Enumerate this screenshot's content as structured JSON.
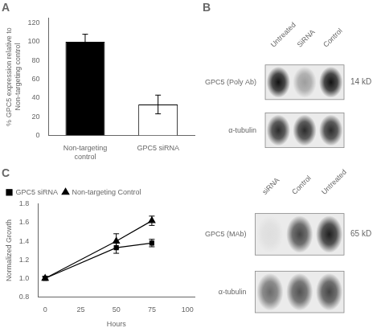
{
  "chart_data": [
    {
      "type": "bar",
      "title": "A",
      "categories": [
        "Non-targeting\ncontrol",
        "GPC5 siRNA"
      ],
      "values": [
        100,
        33
      ],
      "errors": [
        8,
        10
      ],
      "colors": [
        "black",
        "white"
      ],
      "ylabel": "% GPC5 expression relative to\nNon-targeting control",
      "ylim": [
        0,
        125
      ],
      "yticks": [
        0,
        20,
        40,
        60,
        80,
        100,
        120
      ],
      "grid": false
    },
    {
      "type": "line",
      "title": "C",
      "x": [
        0,
        50,
        75
      ],
      "series": [
        {
          "name": "GPC5 siRNA",
          "color": "black",
          "marker": "square",
          "line_style": "solid",
          "values": [
            1.0,
            1.33,
            1.38
          ],
          "errors": [
            0.02,
            0.06,
            0.04
          ]
        },
        {
          "name": "Non-targeting Control",
          "color": "black",
          "marker": "triangle",
          "line_style": "solid",
          "values": [
            1.0,
            1.4,
            1.62
          ],
          "errors": [
            0.02,
            0.08,
            0.05
          ]
        }
      ],
      "xlabel": "Hours",
      "ylabel": "Normalized Growth",
      "xlim": [
        -5,
        105
      ],
      "xticks": [
        0,
        25,
        50,
        75,
        100
      ],
      "ylim": [
        0.8,
        1.8
      ],
      "yticks": [
        0.8,
        {
          "value": 1.0,
          "label": "1.0"
        },
        1.2,
        1.4,
        1.6,
        {
          "value": 1.8,
          "label": "1.8"
        }
      ],
      "legend": "upper left",
      "grid": false
    },
    {
      "type": "heatmap",
      "title": "B",
      "x": [
        "Untreated",
        "SiRNA",
        "Control"
      ],
      "y": [
        "GPC5 (Poly Ab)",
        "α-tubulin"
      ],
      "cells": [
        [
          0.85,
          0.3,
          0.85
        ],
        [
          0.75,
          0.75,
          0.75
        ]
      ],
      "annotation": "14 kD"
    },
    {
      "type": "heatmap",
      "x": [
        "siRNA",
        "Control",
        "Untreated"
      ],
      "y": [
        "GPC5 (MAb)",
        "α-tubulin"
      ],
      "cells": [
        [
          0.05,
          0.65,
          0.8
        ],
        [
          0.5,
          0.6,
          0.65
        ]
      ],
      "annotation": "65 kD"
    }
  ]
}
